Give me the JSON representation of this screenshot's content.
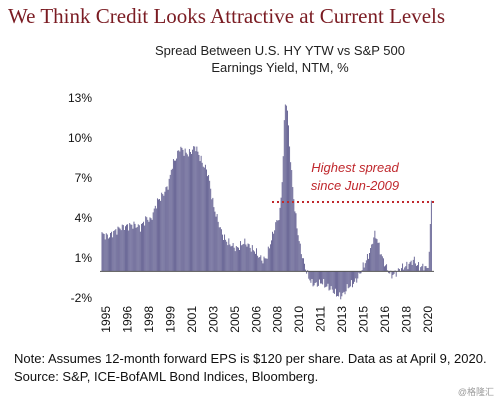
{
  "slide_title": "We Think Credit Looks Attractive at Current Levels",
  "chart_title_line1": "Spread Between U.S. HY YTW vs S&P 500",
  "chart_title_line2": "Earnings Yield, NTM, %",
  "note": "Note: Assumes 12-month forward EPS is $120 per share. Data as at April 9, 2020. Source: S&P, ICE-BofAML Bond Indices, Bloomberg.",
  "watermark": "@格隆汇",
  "colors": {
    "bars": "#5e5b8e",
    "annotation": "#c0282d",
    "title": "#7a1b22"
  },
  "chart_data": {
    "type": "bar",
    "title": "Spread Between U.S. HY YTW vs S&P 500 Earnings Yield, NTM, %",
    "ylim": [
      -3,
      14
    ],
    "y_ticks": [
      "-2%",
      "1%",
      "4%",
      "7%",
      "10%",
      "13%"
    ],
    "x_ticks": [
      "1995",
      "1996",
      "1998",
      "1999",
      "2001",
      "2003",
      "2005",
      "2006",
      "2008",
      "2010",
      "2011",
      "2013",
      "2015",
      "2016",
      "2018",
      "2020"
    ],
    "reference_line": {
      "value": 5.2,
      "style": "dotted"
    },
    "annotation": {
      "line1": "Highest spread",
      "line2": "since Jun-2009"
    },
    "series": [
      {
        "anchors": [
          [
            1994.5,
            2.8
          ],
          [
            1995.0,
            2.6
          ],
          [
            1995.5,
            3.0
          ],
          [
            1996.0,
            3.3
          ],
          [
            1996.5,
            3.4
          ],
          [
            1997.0,
            3.5
          ],
          [
            1997.5,
            3.3
          ],
          [
            1998.0,
            4.0
          ],
          [
            1998.3,
            3.8
          ],
          [
            1998.8,
            5.2
          ],
          [
            1999.3,
            5.8
          ],
          [
            1999.7,
            6.5
          ],
          [
            2000.0,
            8.0
          ],
          [
            2000.3,
            8.5
          ],
          [
            2000.6,
            9.3
          ],
          [
            2000.9,
            9.0
          ],
          [
            2001.2,
            8.8
          ],
          [
            2001.5,
            9.0
          ],
          [
            2001.8,
            9.4
          ],
          [
            2002.1,
            8.7
          ],
          [
            2002.4,
            8.0
          ],
          [
            2002.7,
            7.6
          ],
          [
            2002.9,
            6.8
          ],
          [
            2003.2,
            5.0
          ],
          [
            2003.5,
            4.0
          ],
          [
            2003.9,
            2.8
          ],
          [
            2004.2,
            2.3
          ],
          [
            2004.6,
            2.0
          ],
          [
            2005.0,
            1.7
          ],
          [
            2005.3,
            1.9
          ],
          [
            2005.6,
            2.2
          ],
          [
            2005.9,
            2.0
          ],
          [
            2006.2,
            1.7
          ],
          [
            2006.5,
            1.5
          ],
          [
            2006.8,
            1.1
          ],
          [
            2007.1,
            0.8
          ],
          [
            2007.4,
            1.1
          ],
          [
            2007.6,
            1.9
          ],
          [
            2007.9,
            2.9
          ],
          [
            2008.1,
            3.6
          ],
          [
            2008.4,
            4.2
          ],
          [
            2008.6,
            7.0
          ],
          [
            2008.75,
            11.0
          ],
          [
            2008.85,
            13.0
          ],
          [
            2009.0,
            12.0
          ],
          [
            2009.2,
            9.0
          ],
          [
            2009.4,
            6.5
          ],
          [
            2009.6,
            4.5
          ],
          [
            2009.8,
            3.0
          ],
          [
            2010.0,
            1.8
          ],
          [
            2010.3,
            0.6
          ],
          [
            2010.6,
            -0.3
          ],
          [
            2010.9,
            -0.9
          ],
          [
            2011.3,
            -1.0
          ],
          [
            2011.7,
            -0.8
          ],
          [
            2012.0,
            -1.1
          ],
          [
            2012.4,
            -1.3
          ],
          [
            2012.8,
            -1.7
          ],
          [
            2013.1,
            -1.9
          ],
          [
            2013.4,
            -1.7
          ],
          [
            2013.7,
            -1.2
          ],
          [
            2014.0,
            -1.0
          ],
          [
            2014.3,
            -0.8
          ],
          [
            2014.6,
            -0.3
          ],
          [
            2014.9,
            0.3
          ],
          [
            2015.2,
            0.9
          ],
          [
            2015.5,
            1.6
          ],
          [
            2015.8,
            2.8
          ],
          [
            2016.0,
            2.5
          ],
          [
            2016.2,
            1.7
          ],
          [
            2016.5,
            0.8
          ],
          [
            2016.8,
            0.2
          ],
          [
            2017.1,
            -0.3
          ],
          [
            2017.4,
            -0.2
          ],
          [
            2017.7,
            0.1
          ],
          [
            2018.0,
            0.3
          ],
          [
            2018.3,
            0.4
          ],
          [
            2018.6,
            0.6
          ],
          [
            2018.9,
            0.9
          ],
          [
            2019.1,
            0.5
          ],
          [
            2019.4,
            0.3
          ],
          [
            2019.7,
            0.4
          ],
          [
            2019.85,
            0.2
          ],
          [
            2019.95,
            0.3
          ],
          [
            2020.05,
            0.6
          ],
          [
            2020.15,
            3.2
          ],
          [
            2020.25,
            5.3
          ]
        ]
      }
    ]
  }
}
